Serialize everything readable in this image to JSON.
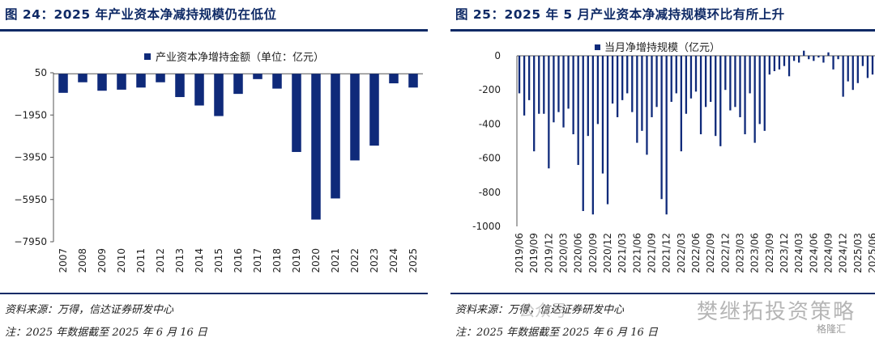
{
  "left": {
    "title": "图 24：2025 年产业资本净减持规模仍在低位",
    "source": "资料来源：万得，信达证券研发中心",
    "note": "注：2025 年数据截至 2025 年 6 月 16 日",
    "colors": {
      "bar": "#0f2a7a",
      "rule": "#0f2a66"
    },
    "chart_data": {
      "type": "bar",
      "legend": "产业资本净增持金额（单位：亿元）",
      "legend_position": "top-center",
      "categories": [
        "2007",
        "2008",
        "2009",
        "2010",
        "2011",
        "2012",
        "2013",
        "2014",
        "2015",
        "2016",
        "2017",
        "2018",
        "2019",
        "2020",
        "2021",
        "2022",
        "2023",
        "2024",
        "2025"
      ],
      "series": [
        {
          "name": "产业资本净增持金额（单位：亿元）",
          "values": [
            -900,
            -400,
            -800,
            -750,
            -650,
            -400,
            -1100,
            -1500,
            -2000,
            -950,
            -250,
            -700,
            -3700,
            -6900,
            -5900,
            -4100,
            -3400,
            -450,
            -650
          ]
        }
      ],
      "yticks": [
        50,
        -1950,
        -3950,
        -5950,
        -7950
      ],
      "ylim": [
        -7950,
        50
      ],
      "grid": false
    }
  },
  "right": {
    "title": "图 25：2025 年 5 月产业资本净减持规模环比有所上升",
    "source": "资料来源：万得，信达证券研发中心",
    "note": "注：2025 年数据截至 2025 年 6 月 16 日",
    "watermark": "樊继拓投资策略",
    "watermark2": "公众号",
    "badge": "格隆汇",
    "colors": {
      "bar": "#0f2a7a",
      "rule": "#0f2a66"
    },
    "chart_data": {
      "type": "bar",
      "legend": "当月净增持规模（亿元）",
      "legend_position": "top-center",
      "x": [
        "2019/06",
        "2019/07",
        "2019/08",
        "2019/09",
        "2019/10",
        "2019/11",
        "2019/12",
        "2020/01",
        "2020/02",
        "2020/03",
        "2020/04",
        "2020/05",
        "2020/06",
        "2020/07",
        "2020/08",
        "2020/09",
        "2020/10",
        "2020/11",
        "2020/12",
        "2021/01",
        "2021/02",
        "2021/03",
        "2021/04",
        "2021/05",
        "2021/06",
        "2021/07",
        "2021/08",
        "2021/09",
        "2021/10",
        "2021/11",
        "2021/12",
        "2022/01",
        "2022/02",
        "2022/03",
        "2022/04",
        "2022/05",
        "2022/06",
        "2022/07",
        "2022/08",
        "2022/09",
        "2022/10",
        "2022/11",
        "2022/12",
        "2023/01",
        "2023/02",
        "2023/03",
        "2023/04",
        "2023/05",
        "2023/06",
        "2023/07",
        "2023/08",
        "2023/09",
        "2023/10",
        "2023/11",
        "2023/12",
        "2024/01",
        "2024/02",
        "2024/03",
        "2024/04",
        "2024/05",
        "2024/06",
        "2024/07",
        "2024/08",
        "2024/09",
        "2024/10",
        "2024/11",
        "2024/12",
        "2025/01",
        "2025/02",
        "2025/03",
        "2025/04",
        "2025/05",
        "2025/06"
      ],
      "xticks": [
        "2019/06",
        "2019/09",
        "2019/12",
        "2020/03",
        "2020/06",
        "2020/09",
        "2020/12",
        "2021/03",
        "2021/06",
        "2021/09",
        "2021/12",
        "2022/03",
        "2022/06",
        "2022/09",
        "2022/12",
        "2023/03",
        "2023/06",
        "2023/09",
        "2023/12",
        "2024/03",
        "2024/06",
        "2024/09",
        "2024/12",
        "2025/03",
        "2025/06"
      ],
      "series": [
        {
          "name": "当月净增持规模（亿元）",
          "values": [
            -220,
            -350,
            -260,
            -560,
            -340,
            -340,
            -660,
            -390,
            -330,
            -420,
            -310,
            -460,
            -640,
            -910,
            -470,
            -930,
            -400,
            -690,
            -870,
            -280,
            -360,
            -260,
            -220,
            -330,
            -510,
            -440,
            -580,
            -360,
            -300,
            -840,
            -930,
            -270,
            -220,
            -560,
            -340,
            -250,
            -210,
            -460,
            -300,
            -270,
            -470,
            -530,
            -200,
            -320,
            -300,
            -360,
            -460,
            -220,
            -510,
            -400,
            -440,
            -110,
            -90,
            -80,
            -60,
            -120,
            -30,
            -40,
            30,
            -20,
            -30,
            -10,
            -40,
            20,
            -80,
            -20,
            -240,
            -150,
            -200,
            -160,
            -60,
            -130,
            -110
          ]
        }
      ],
      "yticks": [
        0,
        -200,
        -400,
        -600,
        -800,
        -1000
      ],
      "ylim": [
        -1000,
        0
      ],
      "grid": false
    }
  }
}
